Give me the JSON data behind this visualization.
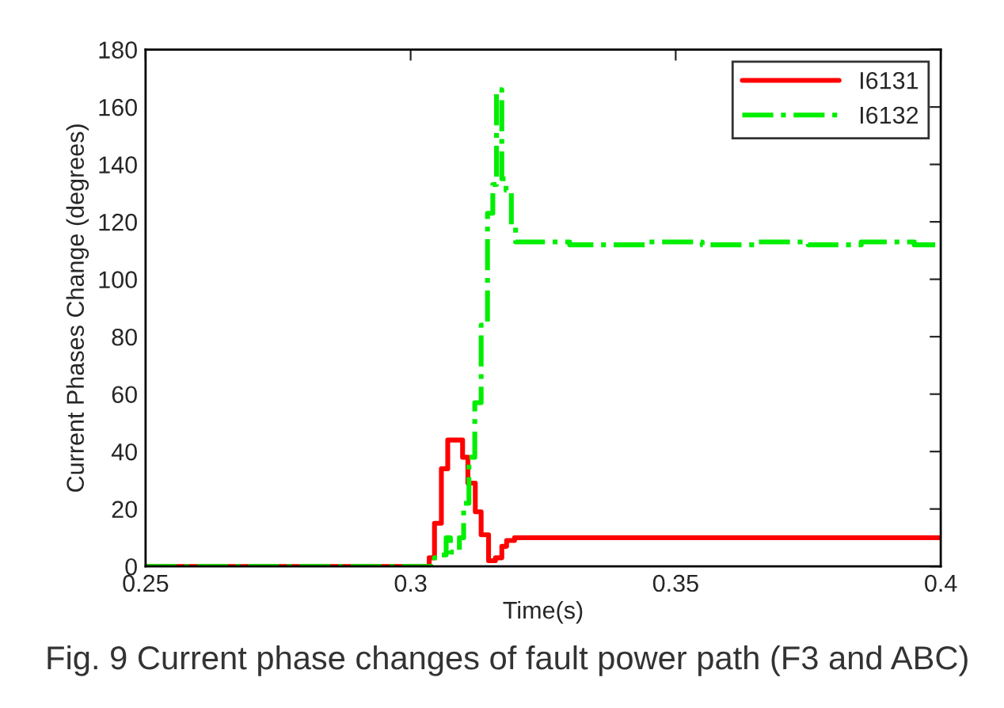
{
  "chart_data": {
    "type": "step",
    "xlabel": "Time(s)",
    "ylabel": "Current Phases Change (degrees)",
    "xlim": [
      0.25,
      0.4
    ],
    "xticks": [
      0.25,
      0.3,
      0.35,
      0.4
    ],
    "ylim": [
      0,
      180
    ],
    "yticks": [
      0,
      20,
      40,
      60,
      80,
      100,
      120,
      140,
      160,
      180
    ],
    "grid": false,
    "legend": "top right",
    "marker": "none",
    "series": [
      {
        "name": "I6131",
        "color": "#ff0000",
        "line_style": "solid",
        "x": [
          0.25,
          0.3035,
          0.3045,
          0.3058,
          0.307,
          0.3098,
          0.3108,
          0.3122,
          0.3133,
          0.3147,
          0.316,
          0.3172,
          0.3181,
          0.3196,
          0.4
        ],
        "values": [
          0,
          3,
          15,
          34,
          44,
          38,
          29,
          19,
          11,
          2,
          3,
          7,
          9,
          10,
          10
        ]
      },
      {
        "name": "I6132",
        "color": "#00ee00",
        "line_style": "dashdot",
        "x": [
          0.25,
          0.3045,
          0.3058,
          0.3067,
          0.3075,
          0.3092,
          0.31,
          0.311,
          0.3121,
          0.3133,
          0.3145,
          0.3155,
          0.3162,
          0.3172,
          0.318,
          0.319,
          0.3198,
          0.322,
          0.33,
          0.345,
          0.355,
          0.365,
          0.375,
          0.385,
          0.395,
          0.4
        ],
        "values": [
          0,
          3,
          4,
          10,
          5,
          10,
          22,
          38,
          57,
          84,
          123,
          133,
          166,
          135,
          131,
          118,
          113,
          113,
          112,
          113,
          112,
          113,
          112,
          113,
          112,
          112
        ]
      }
    ],
    "annotations": [
      "Fig. 9 Current phase changes of fault power path (F3 and ABC)"
    ]
  }
}
